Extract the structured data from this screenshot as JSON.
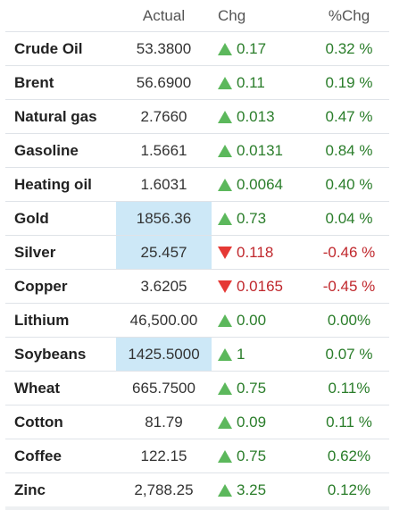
{
  "header": {
    "name": "",
    "actual": "Actual",
    "chg": "Chg",
    "pct": "%Chg"
  },
  "rows": [
    {
      "name": "Crude Oil",
      "actual": "53.3800",
      "chg": "0.17",
      "pct": "0.32 %",
      "dir": "up",
      "highlight": false
    },
    {
      "name": "Brent",
      "actual": "56.6900",
      "chg": "0.11",
      "pct": "0.19 %",
      "dir": "up",
      "highlight": false
    },
    {
      "name": "Natural gas",
      "actual": "2.7660",
      "chg": "0.013",
      "pct": "0.47 %",
      "dir": "up",
      "highlight": false
    },
    {
      "name": "Gasoline",
      "actual": "1.5661",
      "chg": "0.0131",
      "pct": "0.84 %",
      "dir": "up",
      "highlight": false
    },
    {
      "name": "Heating oil",
      "actual": "1.6031",
      "chg": "0.0064",
      "pct": "0.40 %",
      "dir": "up",
      "highlight": false
    },
    {
      "name": "Gold",
      "actual": "1856.36",
      "chg": "0.73",
      "pct": "0.04 %",
      "dir": "up",
      "highlight": true
    },
    {
      "name": "Silver",
      "actual": "25.457",
      "chg": "0.118",
      "pct": "-0.46 %",
      "dir": "down",
      "highlight": true
    },
    {
      "name": "Copper",
      "actual": "3.6205",
      "chg": "0.0165",
      "pct": "-0.45 %",
      "dir": "down",
      "highlight": false
    },
    {
      "name": "Lithium",
      "actual": "46,500.00",
      "chg": "0.00",
      "pct": "0.00%",
      "dir": "up",
      "highlight": false
    },
    {
      "name": "Soybeans",
      "actual": "1425.5000",
      "chg": "1",
      "pct": "0.07 %",
      "dir": "up",
      "highlight": true
    },
    {
      "name": "Wheat",
      "actual": "665.7500",
      "chg": "0.75",
      "pct": "0.11%",
      "dir": "up",
      "highlight": false
    },
    {
      "name": "Cotton",
      "actual": "81.79",
      "chg": "0.09",
      "pct": "0.11 %",
      "dir": "up",
      "highlight": false
    },
    {
      "name": "Coffee",
      "actual": "122.15",
      "chg": "0.75",
      "pct": "0.62%",
      "dir": "up",
      "highlight": false
    },
    {
      "name": "Zinc",
      "actual": "2,788.25",
      "chg": "3.25",
      "pct": "0.12%",
      "dir": "up",
      "highlight": false
    }
  ],
  "colors": {
    "up_text": "#2a7d2a",
    "down_text": "#c0282d",
    "up_arrow": "#5cb85c",
    "down_arrow": "#e53935",
    "highlight_bg": "#cde8f7"
  },
  "icons": {
    "up": "triangle-up-icon",
    "down": "triangle-down-icon"
  }
}
